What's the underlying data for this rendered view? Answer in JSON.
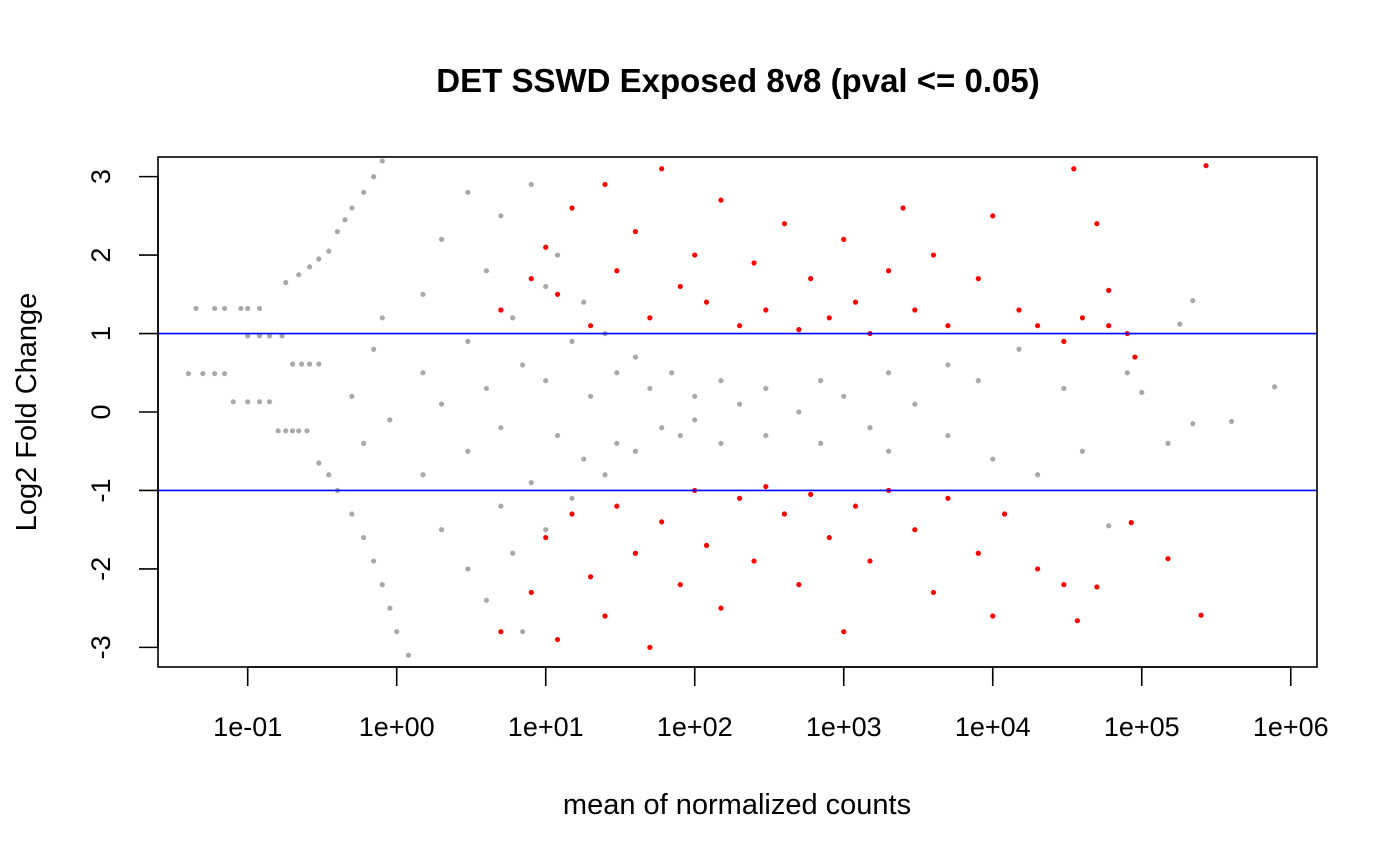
{
  "chart_data": {
    "type": "scatter",
    "title": "DET SSWD Exposed 8v8  (pval <= 0.05)",
    "xlabel": "mean of normalized counts",
    "ylabel": "Log2 Fold Change",
    "x_scale": "log10",
    "xlim": [
      0.025,
      1500000
    ],
    "ylim": [
      -3.25,
      3.25
    ],
    "x_ticks": [
      0.1,
      1,
      10,
      100,
      1000,
      10000,
      100000,
      1000000
    ],
    "x_tick_labels": [
      "1e-01",
      "1e+00",
      "1e+01",
      "1e+02",
      "1e+03",
      "1e+04",
      "1e+05",
      "1e+06"
    ],
    "y_ticks": [
      -3,
      -2,
      -1,
      0,
      1,
      2,
      3
    ],
    "y_tick_labels": [
      "-3",
      "-2",
      "-1",
      "0",
      "1",
      "2",
      "3"
    ],
    "reference_lines": [
      {
        "y": 1,
        "color": "#0000ff"
      },
      {
        "y": -1,
        "color": "#0000ff"
      }
    ],
    "series": [
      {
        "color": "#a9a9a9",
        "points": [
          [
            0.045,
            1.32
          ],
          [
            0.06,
            1.32
          ],
          [
            0.07,
            1.32
          ],
          [
            0.09,
            1.32
          ],
          [
            0.1,
            1.32
          ],
          [
            0.12,
            1.32
          ],
          [
            0.04,
            0.49
          ],
          [
            0.05,
            0.49
          ],
          [
            0.06,
            0.49
          ],
          [
            0.07,
            0.49
          ],
          [
            0.08,
            0.13
          ],
          [
            0.1,
            0.13
          ],
          [
            0.12,
            0.13
          ],
          [
            0.14,
            0.13
          ],
          [
            0.1,
            0.97
          ],
          [
            0.12,
            0.97
          ],
          [
            0.14,
            0.97
          ],
          [
            0.17,
            0.97
          ],
          [
            0.16,
            -0.24
          ],
          [
            0.18,
            -0.24
          ],
          [
            0.2,
            -0.24
          ],
          [
            0.22,
            -0.24
          ],
          [
            0.25,
            -0.24
          ],
          [
            0.2,
            0.61
          ],
          [
            0.23,
            0.61
          ],
          [
            0.26,
            0.61
          ],
          [
            0.3,
            0.61
          ],
          [
            0.18,
            1.65
          ],
          [
            0.22,
            1.75
          ],
          [
            0.26,
            1.85
          ],
          [
            0.3,
            1.95
          ],
          [
            0.35,
            2.05
          ],
          [
            0.4,
            2.3
          ],
          [
            0.45,
            2.45
          ],
          [
            0.5,
            2.6
          ],
          [
            0.6,
            2.8
          ],
          [
            0.7,
            3.0
          ],
          [
            0.8,
            3.2
          ],
          [
            0.3,
            -0.65
          ],
          [
            0.35,
            -0.8
          ],
          [
            0.4,
            -1.0
          ],
          [
            0.5,
            -1.3
          ],
          [
            0.6,
            -1.6
          ],
          [
            0.7,
            -1.9
          ],
          [
            0.8,
            -2.2
          ],
          [
            0.9,
            -2.5
          ],
          [
            1.0,
            -2.8
          ],
          [
            1.2,
            -3.1
          ],
          [
            0.5,
            0.2
          ],
          [
            0.6,
            -0.4
          ],
          [
            0.7,
            0.8
          ],
          [
            0.8,
            1.2
          ],
          [
            0.9,
            -0.1
          ],
          [
            1.5,
            0.5
          ],
          [
            1.5,
            1.5
          ],
          [
            1.5,
            -0.8
          ],
          [
            2,
            2.2
          ],
          [
            2,
            -1.5
          ],
          [
            2,
            0.1
          ],
          [
            3,
            2.8
          ],
          [
            3,
            -2.0
          ],
          [
            3,
            0.9
          ],
          [
            3,
            -0.5
          ],
          [
            4,
            1.8
          ],
          [
            4,
            -2.4
          ],
          [
            4,
            0.3
          ],
          [
            5,
            2.5
          ],
          [
            5,
            -1.2
          ],
          [
            5,
            -0.2
          ],
          [
            6,
            1.2
          ],
          [
            6,
            -1.8
          ],
          [
            7,
            0.6
          ],
          [
            7,
            -2.8
          ],
          [
            8,
            2.9
          ],
          [
            8,
            -0.9
          ],
          [
            10,
            1.6
          ],
          [
            10,
            -1.5
          ],
          [
            10,
            0.4
          ],
          [
            12,
            2.0
          ],
          [
            12,
            -0.3
          ],
          [
            15,
            0.9
          ],
          [
            15,
            -1.1
          ],
          [
            18,
            1.4
          ],
          [
            18,
            -0.6
          ],
          [
            20,
            0.2
          ],
          [
            25,
            1.0
          ],
          [
            25,
            -0.8
          ],
          [
            30,
            0.5
          ],
          [
            30,
            -0.4
          ],
          [
            40,
            0.7
          ],
          [
            40,
            -0.5
          ],
          [
            50,
            0.3
          ],
          [
            60,
            -0.2
          ],
          [
            70,
            0.5
          ],
          [
            80,
            -0.3
          ],
          [
            100,
            0.2
          ],
          [
            100,
            -0.1
          ],
          [
            150,
            0.4
          ],
          [
            150,
            -0.4
          ],
          [
            200,
            0.1
          ],
          [
            300,
            0.3
          ],
          [
            300,
            -0.3
          ],
          [
            500,
            0.0
          ],
          [
            700,
            0.4
          ],
          [
            700,
            -0.4
          ],
          [
            1000,
            0.2
          ],
          [
            1500,
            -0.2
          ],
          [
            2000,
            0.5
          ],
          [
            2000,
            -0.5
          ],
          [
            3000,
            0.1
          ],
          [
            5000,
            -0.3
          ],
          [
            5000,
            0.6
          ],
          [
            8000,
            0.4
          ],
          [
            10000,
            -0.6
          ],
          [
            15000,
            0.8
          ],
          [
            20000,
            -0.8
          ],
          [
            30000,
            0.3
          ],
          [
            40000,
            -0.5
          ],
          [
            60000,
            -1.45
          ],
          [
            80000,
            0.5
          ],
          [
            100000,
            0.25
          ],
          [
            180000,
            1.12
          ],
          [
            220000,
            1.42
          ],
          [
            220000,
            -0.15
          ],
          [
            400000,
            -0.12
          ],
          [
            780000,
            0.32
          ],
          [
            150000,
            -0.4
          ]
        ]
      },
      {
        "color": "#ff0000",
        "points": [
          [
            5,
            1.3
          ],
          [
            8,
            1.7
          ],
          [
            10,
            2.1
          ],
          [
            12,
            1.5
          ],
          [
            15,
            2.6
          ],
          [
            20,
            1.1
          ],
          [
            25,
            2.9
          ],
          [
            30,
            1.8
          ],
          [
            40,
            2.3
          ],
          [
            50,
            1.2
          ],
          [
            60,
            3.1
          ],
          [
            80,
            1.6
          ],
          [
            100,
            2.0
          ],
          [
            120,
            1.4
          ],
          [
            150,
            2.7
          ],
          [
            200,
            1.1
          ],
          [
            250,
            1.9
          ],
          [
            300,
            1.3
          ],
          [
            400,
            2.4
          ],
          [
            500,
            1.05
          ],
          [
            600,
            1.7
          ],
          [
            800,
            1.2
          ],
          [
            1000,
            2.2
          ],
          [
            1200,
            1.4
          ],
          [
            1500,
            1.0
          ],
          [
            2000,
            1.8
          ],
          [
            2500,
            2.6
          ],
          [
            3000,
            1.3
          ],
          [
            4000,
            2.0
          ],
          [
            5000,
            1.1
          ],
          [
            8000,
            1.7
          ],
          [
            10000,
            2.5
          ],
          [
            15000,
            1.3
          ],
          [
            20000,
            1.1
          ],
          [
            30000,
            0.9
          ],
          [
            40000,
            1.2
          ],
          [
            60000,
            1.1
          ],
          [
            80000,
            1.0
          ],
          [
            35000,
            3.1
          ],
          [
            50000,
            2.4
          ],
          [
            270000,
            3.14
          ],
          [
            60000,
            1.55
          ],
          [
            90000,
            0.7
          ],
          [
            5,
            -2.8
          ],
          [
            8,
            -2.3
          ],
          [
            10,
            -1.6
          ],
          [
            12,
            -2.9
          ],
          [
            15,
            -1.3
          ],
          [
            20,
            -2.1
          ],
          [
            25,
            -2.6
          ],
          [
            30,
            -1.2
          ],
          [
            40,
            -1.8
          ],
          [
            50,
            -3.0
          ],
          [
            60,
            -1.4
          ],
          [
            80,
            -2.2
          ],
          [
            100,
            -1.0
          ],
          [
            120,
            -1.7
          ],
          [
            150,
            -2.5
          ],
          [
            200,
            -1.1
          ],
          [
            250,
            -1.9
          ],
          [
            300,
            -0.95
          ],
          [
            400,
            -1.3
          ],
          [
            500,
            -2.2
          ],
          [
            600,
            -1.05
          ],
          [
            800,
            -1.6
          ],
          [
            1000,
            -2.8
          ],
          [
            1200,
            -1.2
          ],
          [
            1500,
            -1.9
          ],
          [
            2000,
            -1.0
          ],
          [
            3000,
            -1.5
          ],
          [
            4000,
            -2.3
          ],
          [
            5000,
            -1.1
          ],
          [
            8000,
            -1.8
          ],
          [
            10000,
            -2.6
          ],
          [
            12000,
            -1.3
          ],
          [
            20000,
            -2.0
          ],
          [
            30000,
            -2.2
          ],
          [
            37000,
            -2.66
          ],
          [
            50000,
            -2.23
          ],
          [
            85000,
            -1.41
          ],
          [
            150000,
            -1.87
          ],
          [
            250000,
            -2.59
          ]
        ]
      }
    ]
  }
}
